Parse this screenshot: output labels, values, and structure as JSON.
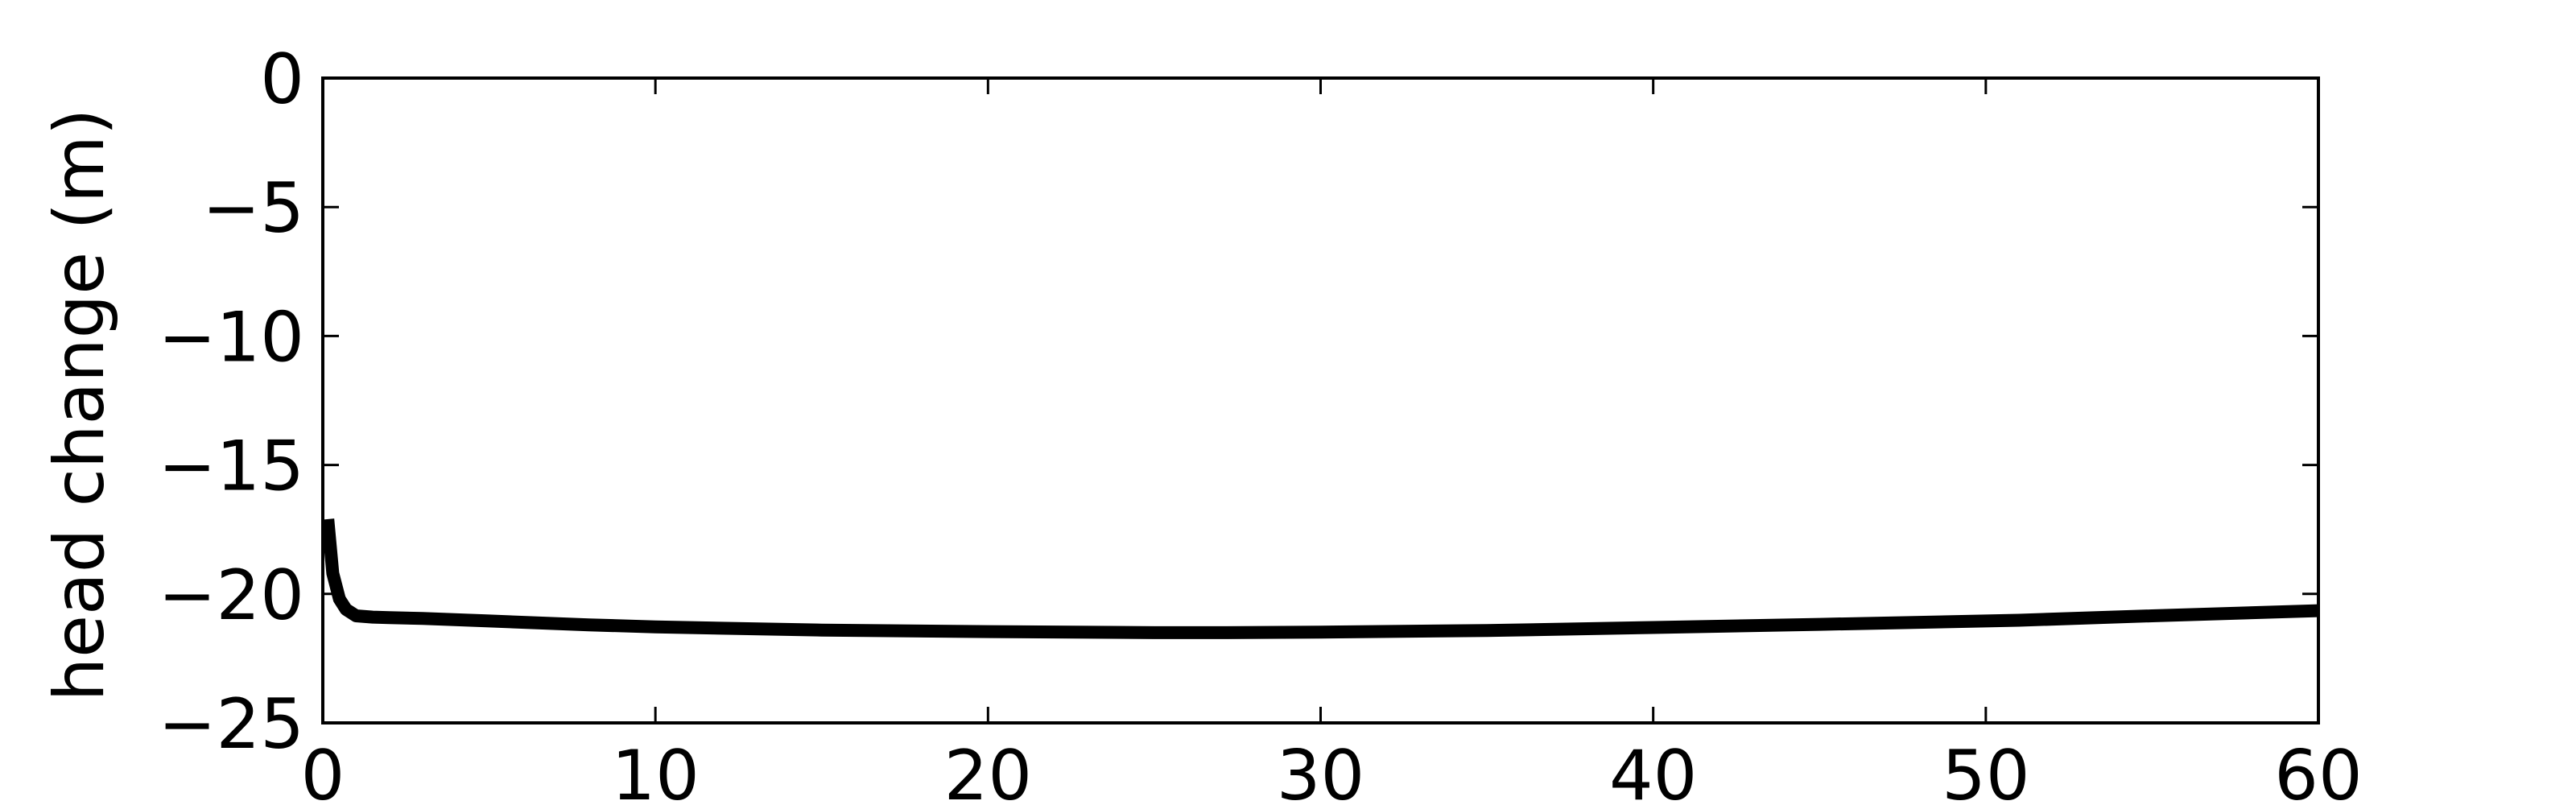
{
  "chart_data": {
    "type": "line",
    "title": "",
    "xlabel": "",
    "ylabel": "head change (m)",
    "xlim": [
      0,
      60
    ],
    "ylim": [
      -25,
      0
    ],
    "xticks": [
      0,
      10,
      20,
      30,
      40,
      50,
      60
    ],
    "xtick_labels": [
      "0",
      "10",
      "20",
      "30",
      "40",
      "50",
      "60"
    ],
    "yticks": [
      0,
      -5,
      -10,
      -15,
      -20,
      -25
    ],
    "ytick_labels": [
      "0",
      "−5",
      "−10",
      "−15",
      "−20",
      "−25"
    ],
    "grid": false,
    "legend": "none",
    "series": [
      {
        "color": "#000000",
        "x": [
          0.15,
          0.3,
          0.5,
          0.7,
          1.0,
          1.5,
          2.0,
          3.0,
          5.0,
          8.0,
          10.0,
          15.0,
          20.0,
          25.0,
          27.0,
          30.0,
          35.0,
          40.0,
          45.0,
          50.0,
          51.0,
          55.0,
          60.0
        ],
        "y": [
          -17.1,
          -19.2,
          -20.2,
          -20.6,
          -20.85,
          -20.9,
          -20.92,
          -20.95,
          -21.05,
          -21.2,
          -21.28,
          -21.4,
          -21.46,
          -21.5,
          -21.5,
          -21.48,
          -21.42,
          -21.3,
          -21.18,
          -21.05,
          -21.02,
          -20.85,
          -20.65
        ]
      }
    ]
  }
}
